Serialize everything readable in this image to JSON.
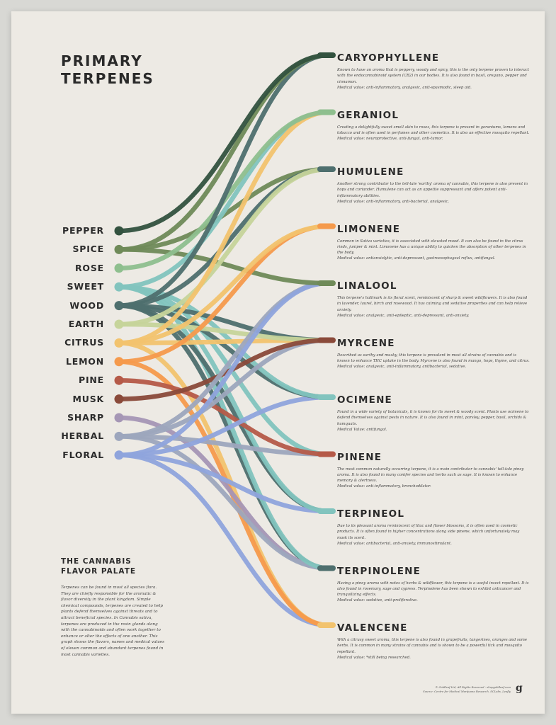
{
  "title": [
    "PRIMARY",
    "TERPENES"
  ],
  "flavors": [
    {
      "name": "PEPPER",
      "color": "#33523f"
    },
    {
      "name": "SPICE",
      "color": "#6f8a58"
    },
    {
      "name": "ROSE",
      "color": "#8ebf8e"
    },
    {
      "name": "SWEET",
      "color": "#82c4be"
    },
    {
      "name": "WOOD",
      "color": "#4e6f6e"
    },
    {
      "name": "EARTH",
      "color": "#c6d49a"
    },
    {
      "name": "CITRUS",
      "color": "#f2c36e"
    },
    {
      "name": "LEMON",
      "color": "#f59a4c"
    },
    {
      "name": "PINE",
      "color": "#b55a48"
    },
    {
      "name": "MUSK",
      "color": "#8a4a3a"
    },
    {
      "name": "SHARP",
      "color": "#a596b5"
    },
    {
      "name": "HERBAL",
      "color": "#9da6bd"
    },
    {
      "name": "FLORAL",
      "color": "#8fa4dc"
    }
  ],
  "terpenes": [
    {
      "name": "CARYOPHYLLENE",
      "color": "#33523f",
      "desc": "Known to have an aroma that is peppery, woody and spicy, this is the only terpene proven to interact with the endocannabinoid system (CB2) in our bodies. It is also found in basil, oregano, pepper and cinnamon.",
      "medical": "Medical value: anti-inflammatory, analgesic, anti-spasmodic, sleep aid."
    },
    {
      "name": "GERANIOL",
      "color": "#8ebf8e",
      "desc": "Creating a delightfully sweet smell akin to roses, this terpene is present in geraniums, lemons and tobacco and is often used in perfumes and other cosmetics. It is also an effective mosquito repellant.",
      "medical": "Medical value: neuroprotective, anti-fungal, anti-tumor."
    },
    {
      "name": "HUMULENE",
      "color": "#4e6f6e",
      "desc": "Another strong contributor to the tell-tale 'earthy' aroma of cannabis, this terpene is also present in hops and coriander. Humulene can act as an appetite suppressant and offers potent anti-inflammatory abilities.",
      "medical": "Medical value: anti-inflammatory, anti-bacterial, analgesic."
    },
    {
      "name": "LIMONENE",
      "color": "#f59a4c",
      "desc": "Common in Sativa varieties, it is associated with elevated mood. It can also be found in the citrus rinds, juniper & mint. Limonene has a unique ability to quicken the absorption of other terpenes in the body.",
      "medical": "Medical value: antianxiolytic, anti-depressant, gastroesophageal reflux, antifungal."
    },
    {
      "name": "LINALOOL",
      "color": "#6f8a58",
      "desc": "This terpene's hallmark is its floral scent, reminiscent of sharp & sweet wildflowers. It is also found in lavender, laurel, birch and rosewood. It has calming and sedative properties and can help relieve anxiety.",
      "medical": "Medical value: analgesic, anti-epileptic, anti-depressant, anti-anxiety."
    },
    {
      "name": "MYRCENE",
      "color": "#8a4a3a",
      "desc": "Described as earthy and musky, this terpene is prevalent in most all strains of cannabis and is known to enhance THC uptake in the body. Myrcene is also found in mango, hops, thyme, and citrus.",
      "medical": "Medical value: analgesic, anti-inflammatory, antibacterial, sedative."
    },
    {
      "name": "OCIMENE",
      "color": "#82c4be",
      "desc": "Found in a wide variety of botanicals, it is known for its sweet & woody scent. Plants use ocimene to defend themselves against pests in nature. It is also found in mint, parsley, pepper, basil, orchids & kumquats.",
      "medical": "Medical Value: antifungal."
    },
    {
      "name": "PINENE",
      "color": "#b55a48",
      "desc": "The most common naturally occurring terpene, it is a main contributor to cannabis' tell-tale piney aroma. It is also found in many conifer species and herbs such as sage. It is known to enhance memory & alertness.",
      "medical": "Medical value: anti-inflammatory, bronchodilator."
    },
    {
      "name": "TERPINEOL",
      "color": "#82c4be",
      "desc": "Due to its pleasant aroma reminiscent of lilac and flower blossoms, it is often used in cosmetic products. It is often found in higher concentrations along side pinene, which unfortunately may mask its scent.",
      "medical": "Medical value: antibacterial, anti-anxiety, immunostimulant."
    },
    {
      "name": "TERPINOLENE",
      "color": "#4e6f6e",
      "desc": "Having a piney aroma with notes of herbs & wildflower, this terpene is a useful insect repellant. It is also found in rosemary, sage and cypress. Terpinolene has been shown to exhibit anticancer and tranquilizing effects.",
      "medical": "Medical value: sedative, anti-proliferative."
    },
    {
      "name": "VALENCENE",
      "color": "#f2c36e",
      "desc": "With a citrusy sweet aroma, this terpene is also found in grapefruits, tangerines, oranges and some herbs. It is common in many strains of cannabis and is shown to be a powerful tick and mosquito repellant.",
      "medical": "Medical value: *still being researched."
    }
  ],
  "links": [
    [
      0,
      0
    ],
    [
      1,
      0
    ],
    [
      4,
      0
    ],
    [
      2,
      1
    ],
    [
      6,
      1
    ],
    [
      3,
      1
    ],
    [
      5,
      2
    ],
    [
      4,
      2
    ],
    [
      1,
      2
    ],
    [
      6,
      3
    ],
    [
      7,
      3
    ],
    [
      1,
      4
    ],
    [
      12,
      4
    ],
    [
      11,
      4
    ],
    [
      9,
      5
    ],
    [
      5,
      5
    ],
    [
      4,
      5
    ],
    [
      6,
      5
    ],
    [
      11,
      5
    ],
    [
      3,
      6
    ],
    [
      4,
      6
    ],
    [
      12,
      6
    ],
    [
      8,
      7
    ],
    [
      11,
      7
    ],
    [
      3,
      7
    ],
    [
      3,
      8
    ],
    [
      12,
      8
    ],
    [
      4,
      8
    ],
    [
      3,
      9
    ],
    [
      11,
      9
    ],
    [
      10,
      9
    ],
    [
      4,
      9
    ],
    [
      7,
      10
    ],
    [
      6,
      10
    ],
    [
      12,
      10
    ]
  ],
  "palate": {
    "title": [
      "THE CANNABIS",
      "FLAVOR PALATE"
    ],
    "text": "Terpenes can be found in most all species flora. They are chiefly responsible for the aromatic & flavor diversity in the plant kingdom. Simple chemical compounds, terpenes are created to help plants defend themselves against threats and to attract beneficial species. In Cannabis sativa, terpenes are produced in the resin glands along with the cannabinoids and often work together to enhance or alter the effects of one another. This graph shows the flavors, names and medical values of eleven common and abundant terpenes found in most cannabis varieties."
  },
  "footer": {
    "line1": "© Goldleaf Ltd, All Rights Reserved - shopgoldleaf.com",
    "line2": "Source: Centre for Medical Marijuana Research, SCLabs, Leafly",
    "logo": "g"
  }
}
